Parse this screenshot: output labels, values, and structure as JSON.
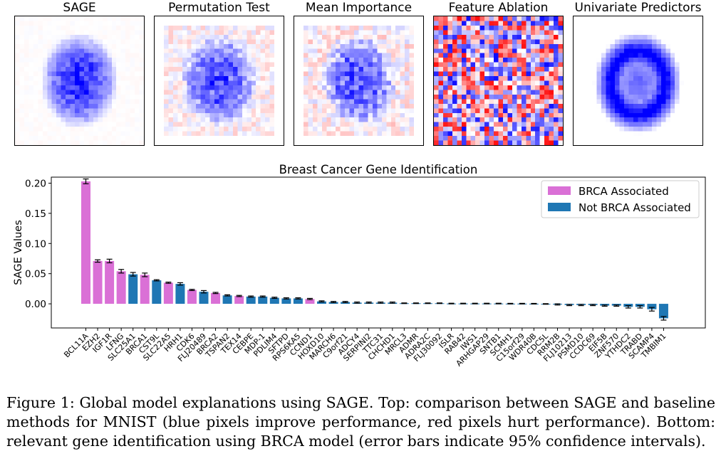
{
  "top_panels": [
    {
      "title": "SAGE",
      "style": "blob"
    },
    {
      "title": "Permutation Test",
      "style": "blob_noisy"
    },
    {
      "title": "Mean Importance",
      "style": "blob_noisy2"
    },
    {
      "title": "Feature Ablation",
      "style": "random"
    },
    {
      "title": "Univariate Predictors",
      "style": "ring"
    }
  ],
  "colors": {
    "brca": "#da70d6",
    "not_brca": "#1f77b4",
    "positive_pixel": "#0000ff",
    "negative_pixel": "#ff0000"
  },
  "chart_data": {
    "type": "bar",
    "title": "Breast Cancer Gene Identification",
    "ylabel": "SAGE Values",
    "xlabel": "",
    "ylim": [
      -0.04,
      0.21
    ],
    "yticks": [
      0.0,
      0.05,
      0.1,
      0.15,
      0.2
    ],
    "ytick_labels": [
      "0.00",
      "0.05",
      "0.10",
      "0.15",
      "0.20"
    ],
    "legend": {
      "position": "top-right",
      "entries": [
        "BRCA Associated",
        "Not BRCA Associated"
      ]
    },
    "categories": [
      "BCL11A",
      "EZH2",
      "IGF1R",
      "LFNG",
      "SLC25A1",
      "BRCA1",
      "CST9L",
      "SLC22A5",
      "HRH1",
      "CDK6",
      "FLJ20489",
      "BRCA2",
      "TSPAN2",
      "TEX14",
      "CEBPE",
      "MDP-1",
      "PDLIM4",
      "SFTPD",
      "RPS6KA5",
      "CCND1",
      "HOXD10",
      "MARCH6",
      "C9orf21",
      "ADCY4",
      "SERPINI2",
      "TTC31",
      "CHCHD1",
      "MRCL3",
      "ADMR",
      "ADRA2C",
      "FLJ30092",
      "ISLR",
      "RAB42",
      "IWS1",
      "ARHGAP29",
      "SNTB1",
      "SCMH1",
      "C15orf29",
      "WDR40B",
      "CDC5L",
      "RRM2B",
      "FLJ10213",
      "PSMD10",
      "CCDC69",
      "EIF5B",
      "ZNF570",
      "YTHDC2",
      "TRABD",
      "SCAMP4",
      "TMBIM1"
    ],
    "values": [
      0.203,
      0.071,
      0.071,
      0.054,
      0.049,
      0.048,
      0.039,
      0.035,
      0.033,
      0.023,
      0.02,
      0.018,
      0.014,
      0.013,
      0.012,
      0.012,
      0.01,
      0.009,
      0.009,
      0.008,
      0.004,
      0.003,
      0.003,
      0.002,
      0.002,
      0.002,
      0.002,
      0.001,
      0.001,
      0.001,
      0.001,
      0.0005,
      0.0005,
      0.0005,
      0.0005,
      0.0005,
      0.0003,
      0.0003,
      0.0002,
      -0.0002,
      -0.001,
      -0.002,
      -0.002,
      -0.002,
      -0.003,
      -0.003,
      -0.005,
      -0.005,
      -0.009,
      -0.024
    ],
    "errors": [
      0.004,
      0.002,
      0.003,
      0.003,
      0.003,
      0.003,
      0.001,
      0.001,
      0.002,
      0.001,
      0.002,
      0.001,
      0.001,
      0.001,
      0.001,
      0.001,
      0.001,
      0.001,
      0.001,
      0.001,
      0.001,
      0.001,
      0.001,
      0.001,
      0.001,
      0.001,
      0.001,
      0.0005,
      0.0005,
      0.0005,
      0.0005,
      0.0005,
      0.0005,
      0.0005,
      0.0005,
      0.0005,
      0.0005,
      0.0005,
      0.0005,
      0.0005,
      0.001,
      0.001,
      0.001,
      0.001,
      0.001,
      0.001,
      0.002,
      0.002,
      0.003,
      0.003
    ],
    "brca_associated": [
      true,
      true,
      true,
      true,
      false,
      true,
      false,
      true,
      false,
      true,
      false,
      true,
      false,
      true,
      false,
      false,
      false,
      false,
      false,
      true,
      false,
      false,
      false,
      false,
      false,
      false,
      false,
      false,
      false,
      false,
      false,
      false,
      false,
      false,
      false,
      false,
      false,
      false,
      false,
      false,
      false,
      false,
      false,
      false,
      false,
      false,
      false,
      false,
      false,
      false
    ]
  },
  "caption": "Figure 1: Global model explanations using SAGE. Top: comparison between SAGE and baseline methods for MNIST (blue pixels improve performance, red pixels hurt performance). Bottom: relevant gene identification using BRCA model (error bars indicate 95% confidence intervals)."
}
